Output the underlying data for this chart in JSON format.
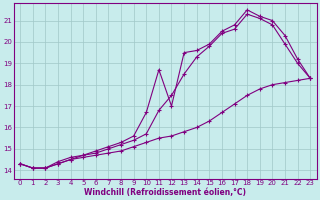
{
  "xlabel": "Windchill (Refroidissement éolien,°C)",
  "bg_color": "#c8ecec",
  "line_color": "#800080",
  "xlim": [
    -0.5,
    23.5
  ],
  "ylim": [
    13.6,
    21.8
  ],
  "yticks": [
    14,
    15,
    16,
    17,
    18,
    19,
    20,
    21
  ],
  "xticks": [
    0,
    1,
    2,
    3,
    4,
    5,
    6,
    7,
    8,
    9,
    10,
    11,
    12,
    13,
    14,
    15,
    16,
    17,
    18,
    19,
    20,
    21,
    22,
    23
  ],
  "grid_color": "#a0c8c8",
  "series1_x": [
    0,
    1,
    2,
    3,
    4,
    5,
    6,
    7,
    8,
    9,
    10,
    11,
    12,
    13,
    14,
    15,
    16,
    17,
    18,
    19,
    20,
    21,
    22,
    23
  ],
  "series1_y": [
    14.3,
    14.1,
    14.1,
    14.3,
    14.5,
    14.7,
    14.8,
    15.0,
    15.2,
    15.4,
    15.7,
    16.8,
    17.5,
    18.5,
    19.3,
    19.8,
    20.4,
    20.6,
    21.3,
    21.1,
    20.8,
    19.9,
    19.0,
    18.3
  ],
  "series2_x": [
    0,
    1,
    2,
    3,
    4,
    5,
    6,
    7,
    8,
    9,
    10,
    11,
    12,
    13,
    14,
    15,
    16,
    17,
    18,
    19,
    20,
    21,
    22,
    23
  ],
  "series2_y": [
    14.3,
    14.1,
    14.1,
    14.4,
    14.6,
    14.7,
    14.9,
    15.1,
    15.3,
    15.6,
    16.7,
    18.7,
    17.0,
    19.5,
    19.6,
    19.9,
    20.5,
    20.8,
    21.5,
    21.2,
    21.0,
    20.3,
    19.2,
    18.3
  ],
  "series3_x": [
    0,
    1,
    2,
    3,
    4,
    5,
    6,
    7,
    8,
    9,
    10,
    11,
    12,
    13,
    14,
    15,
    16,
    17,
    18,
    19,
    20,
    21,
    22,
    23
  ],
  "series3_y": [
    14.3,
    14.1,
    14.1,
    14.3,
    14.5,
    14.6,
    14.7,
    14.8,
    14.9,
    15.1,
    15.3,
    15.5,
    15.6,
    15.8,
    16.0,
    16.3,
    16.7,
    17.1,
    17.5,
    17.8,
    18.0,
    18.1,
    18.2,
    18.3
  ]
}
